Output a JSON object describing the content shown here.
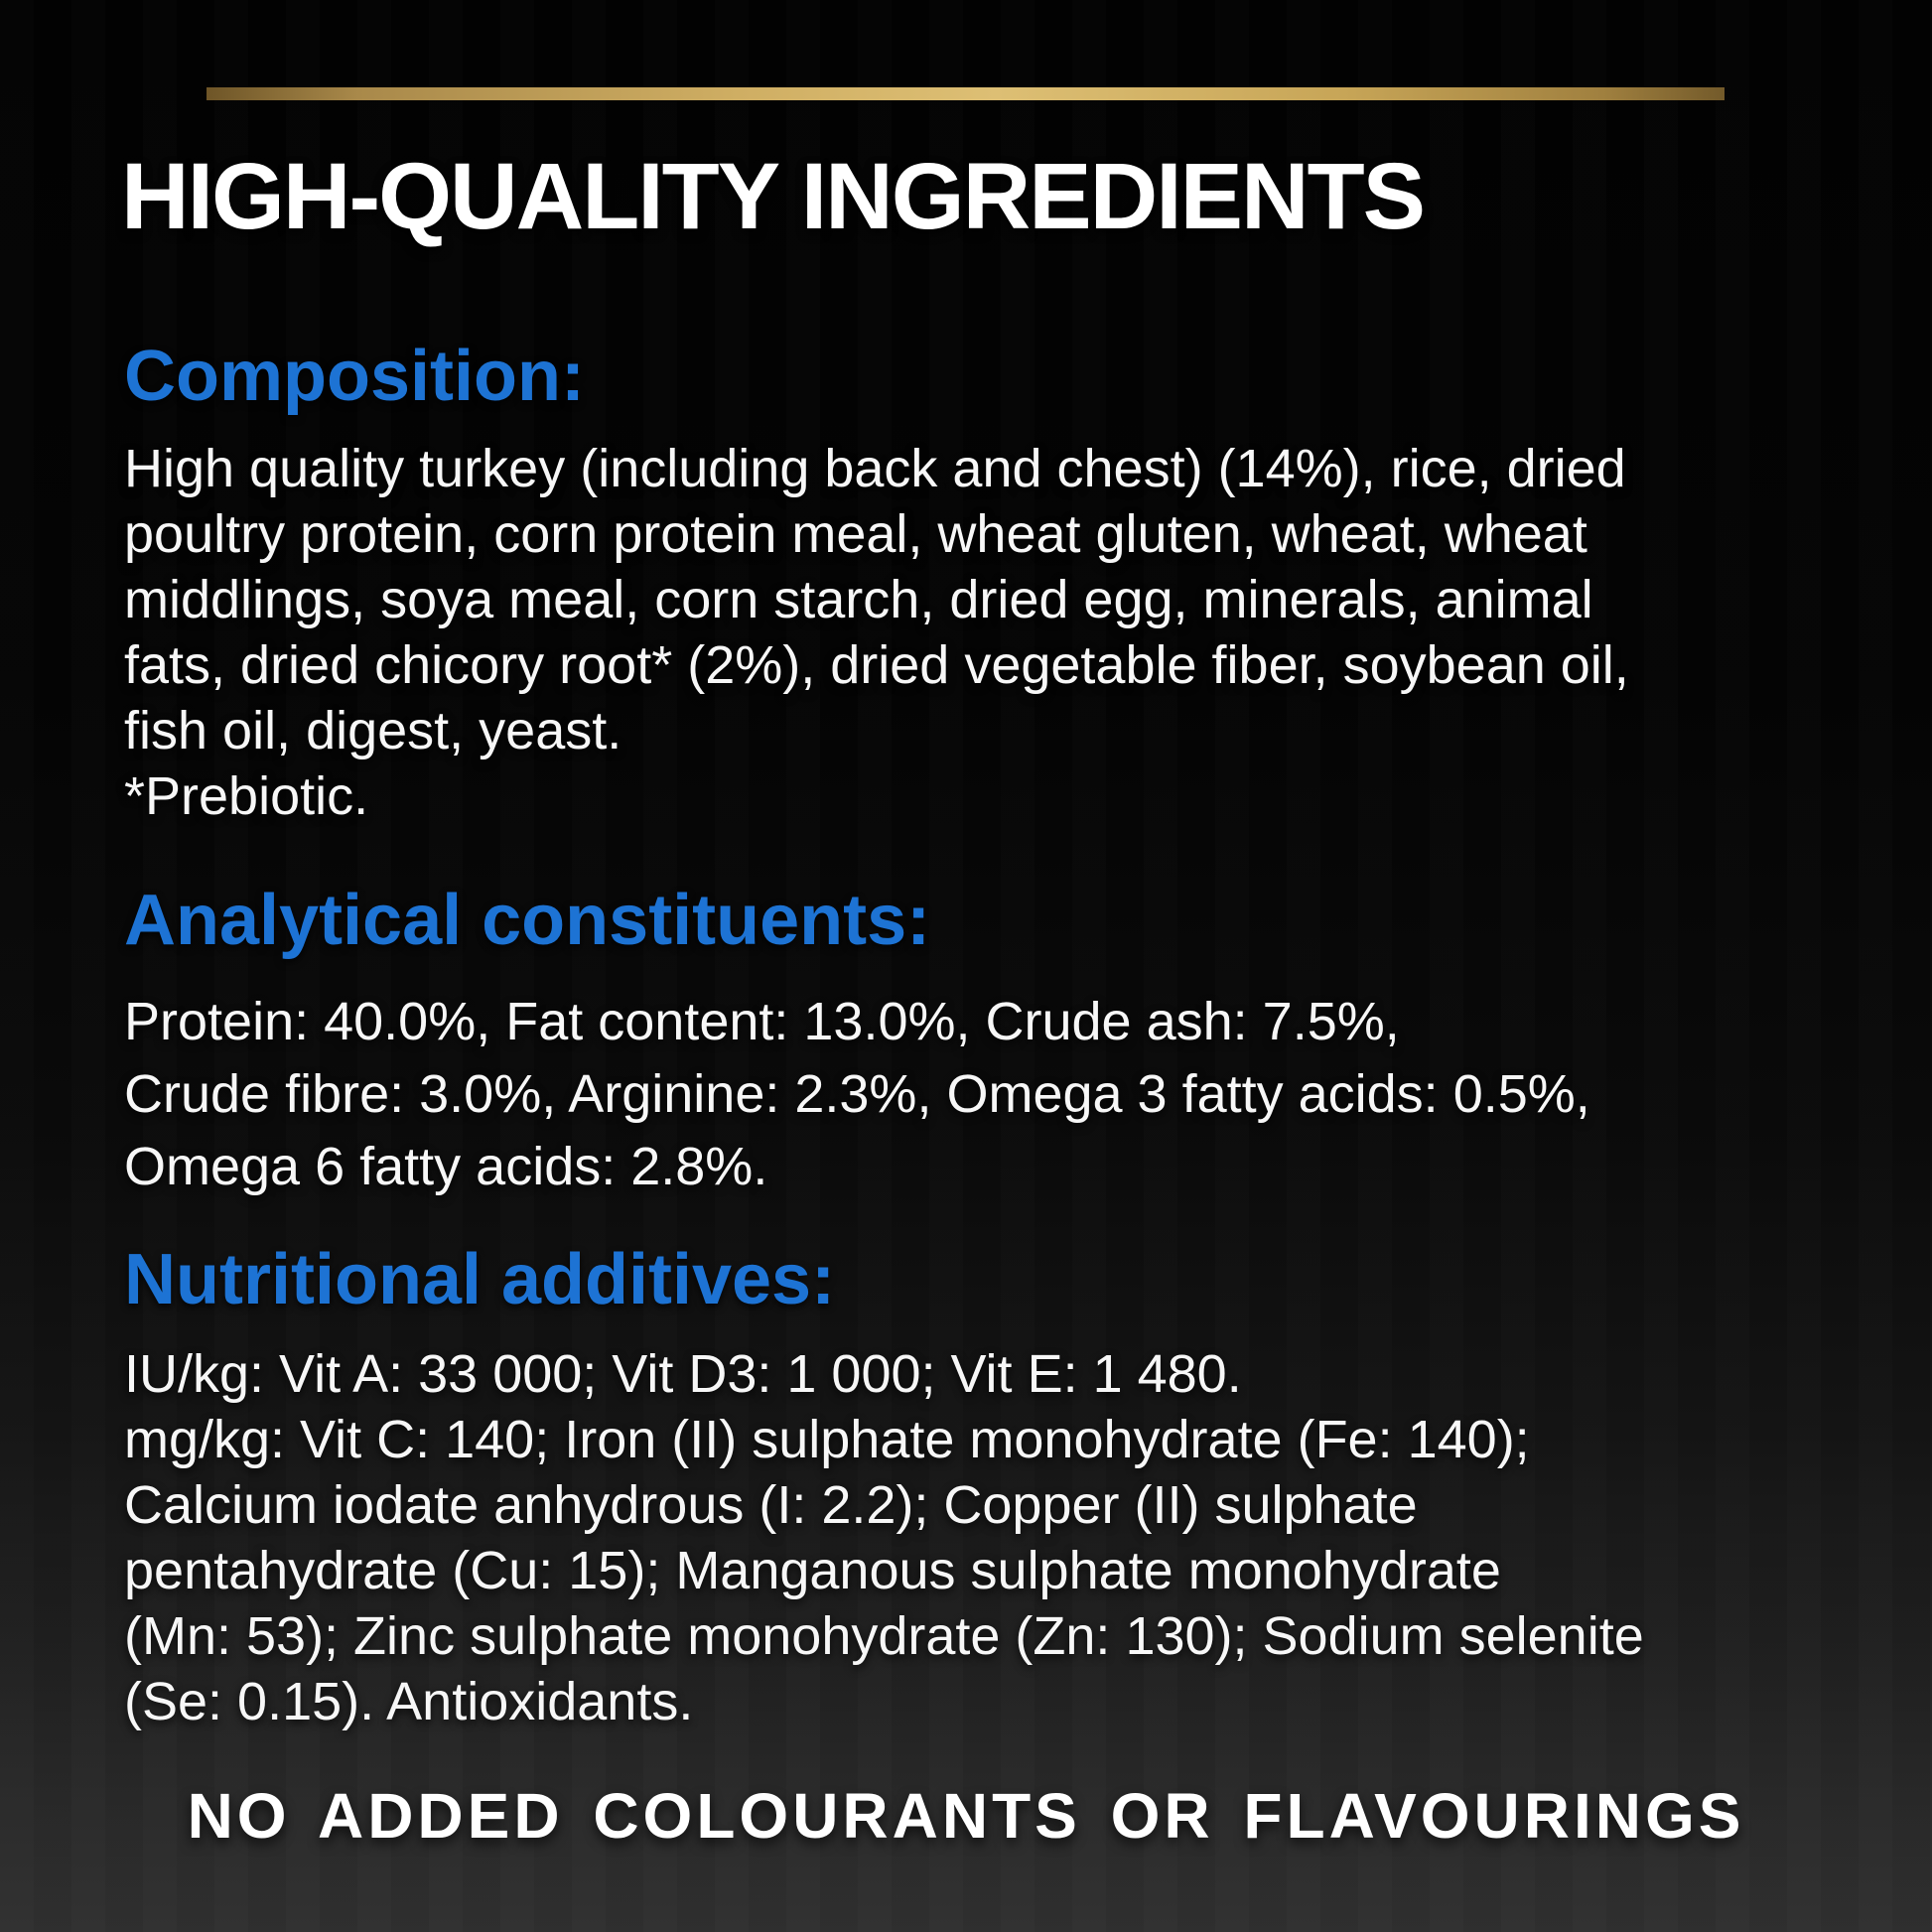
{
  "page": {
    "title": "HIGH-QUALITY INGREDIENTS",
    "footer_claim": "NO ADDED COLOURANTS OR FLAVOURINGS"
  },
  "colors": {
    "accent_blue": "#1d73d4",
    "gold_bar": "#d6b367",
    "text_white": "#ffffff",
    "background_top": "#020202",
    "background_bottom": "#303030"
  },
  "sections": {
    "composition": {
      "heading": "Composition:",
      "lines": [
        "High quality turkey (including back and chest) (14%), rice, dried",
        "poultry protein, corn protein meal, wheat gluten, wheat, wheat",
        "middlings, soya meal, corn starch, dried egg, minerals, animal",
        "fats, dried chicory root* (2%), dried vegetable fiber, soybean oil,",
        "fish oil, digest, yeast.",
        "*Prebiotic."
      ]
    },
    "analytical": {
      "heading": "Analytical constituents:",
      "lines": [
        "Protein: 40.0%, Fat content: 13.0%, Crude ash: 7.5%,",
        "Crude fibre: 3.0%, Arginine: 2.3%, Omega 3 fatty acids: 0.5%,",
        "Omega 6 fatty acids: 2.8%."
      ]
    },
    "additives": {
      "heading": "Nutritional additives:",
      "lines": [
        "IU/kg: Vit A: 33 000; Vit D3: 1 000; Vit E: 1 480.",
        "mg/kg: Vit C: 140; Iron (II) sulphate monohydrate (Fe: 140);",
        "Calcium iodate anhydrous (I: 2.2); Copper (II) sulphate",
        "pentahydrate (Cu: 15); Manganous sulphate monohydrate",
        "(Mn: 53); Zinc sulphate monohydrate (Zn: 130); Sodium selenite",
        "(Se: 0.15). Antioxidants."
      ]
    }
  }
}
